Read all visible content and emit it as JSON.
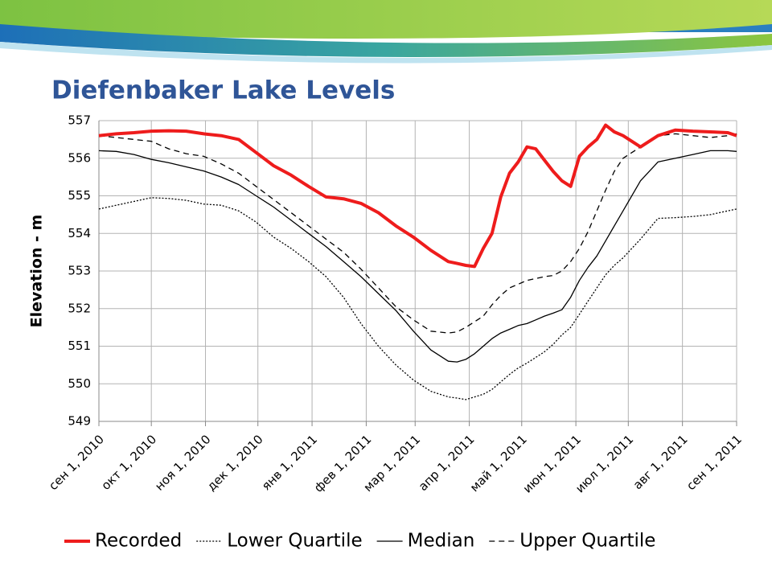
{
  "chart_data": {
    "type": "line",
    "title": "Diefenbaker Lake Levels",
    "ylabel": "Elevation - m",
    "x": [
      0,
      10,
      20,
      30,
      40,
      50,
      60,
      70,
      80,
      90,
      100,
      110,
      120,
      130,
      140,
      150,
      160,
      170,
      180,
      190,
      200,
      205,
      210,
      215,
      220,
      225,
      230,
      235,
      240,
      245,
      250,
      255,
      260,
      265,
      270,
      275,
      280,
      285,
      290,
      295,
      300,
      310,
      320,
      330,
      340,
      350,
      360,
      365
    ],
    "xlim": [
      0,
      365
    ],
    "xticks": [
      {
        "value": 0,
        "label": "сен 1, 2010"
      },
      {
        "value": 30,
        "label": "окт 1, 2010"
      },
      {
        "value": 61,
        "label": "ноя 1, 2010"
      },
      {
        "value": 91,
        "label": "дек 1, 2010"
      },
      {
        "value": 122,
        "label": "янв 1, 2011"
      },
      {
        "value": 153,
        "label": "фев 1, 2011"
      },
      {
        "value": 181,
        "label": "мар 1, 2011"
      },
      {
        "value": 212,
        "label": "апр 1, 2011"
      },
      {
        "value": 242,
        "label": "май 1, 2011"
      },
      {
        "value": 273,
        "label": "июн 1, 2011"
      },
      {
        "value": 303,
        "label": "июл 1, 2011"
      },
      {
        "value": 334,
        "label": "авг 1, 2011"
      },
      {
        "value": 365,
        "label": "сен 1, 2011"
      }
    ],
    "ylim": [
      549,
      557
    ],
    "yticks": [
      549,
      550,
      551,
      552,
      553,
      554,
      555,
      556,
      557
    ],
    "grid": true,
    "legend": "bottom",
    "series": [
      {
        "name": "Recorded",
        "color": "#ee1c1c",
        "style": "solid",
        "width": 4,
        "values": [
          556.6,
          556.65,
          556.68,
          556.72,
          556.73,
          556.72,
          556.65,
          556.6,
          556.5,
          556.15,
          555.8,
          555.55,
          555.25,
          554.97,
          554.92,
          554.8,
          554.55,
          554.2,
          553.9,
          553.55,
          553.25,
          553.2,
          553.15,
          553.12,
          553.6,
          554.0,
          554.97,
          555.6,
          555.9,
          556.3,
          556.25,
          555.95,
          555.65,
          555.4,
          555.25,
          556.05,
          556.3,
          556.5,
          556.88,
          556.7,
          556.6,
          556.3,
          556.6,
          556.75,
          556.72,
          556.7,
          556.68,
          556.6
        ]
      },
      {
        "name": "Lower Quartile",
        "color": "#000000",
        "style": "dotted",
        "width": 1.3,
        "values": [
          554.65,
          554.75,
          554.85,
          554.95,
          554.93,
          554.88,
          554.78,
          554.75,
          554.6,
          554.3,
          553.9,
          553.6,
          553.25,
          552.85,
          552.3,
          551.6,
          551.0,
          550.5,
          550.1,
          549.8,
          549.65,
          549.62,
          549.58,
          549.65,
          549.72,
          549.85,
          550.05,
          550.25,
          550.42,
          550.55,
          550.7,
          550.85,
          551.05,
          551.3,
          551.5,
          551.85,
          552.2,
          552.55,
          552.9,
          553.15,
          553.35,
          553.85,
          554.4,
          554.42,
          554.45,
          554.5,
          554.6,
          554.65
        ]
      },
      {
        "name": "Median",
        "color": "#000000",
        "style": "solid",
        "width": 1.3,
        "values": [
          556.2,
          556.18,
          556.1,
          555.97,
          555.88,
          555.77,
          555.66,
          555.5,
          555.3,
          555.0,
          554.7,
          554.35,
          554.0,
          553.65,
          553.25,
          552.85,
          552.4,
          551.95,
          551.4,
          550.9,
          550.6,
          550.58,
          550.65,
          550.8,
          551.0,
          551.2,
          551.35,
          551.45,
          551.55,
          551.6,
          551.7,
          551.8,
          551.88,
          551.97,
          552.3,
          552.75,
          553.1,
          553.4,
          553.8,
          554.2,
          554.6,
          555.4,
          555.9,
          556.0,
          556.1,
          556.2,
          556.2,
          556.18
        ]
      },
      {
        "name": "Upper Quartile",
        "color": "#000000",
        "style": "dashed",
        "width": 1.3,
        "values": [
          556.6,
          556.55,
          556.5,
          556.45,
          556.25,
          556.12,
          556.05,
          555.85,
          555.6,
          555.25,
          554.9,
          554.55,
          554.2,
          553.85,
          553.5,
          553.05,
          552.55,
          552.05,
          551.7,
          551.4,
          551.35,
          551.38,
          551.5,
          551.65,
          551.8,
          552.1,
          552.35,
          552.55,
          552.65,
          552.75,
          552.8,
          552.85,
          552.88,
          553.0,
          553.25,
          553.6,
          554.05,
          554.6,
          555.15,
          555.65,
          556.0,
          556.3,
          556.6,
          556.65,
          556.6,
          556.55,
          556.6,
          556.65
        ]
      }
    ]
  }
}
